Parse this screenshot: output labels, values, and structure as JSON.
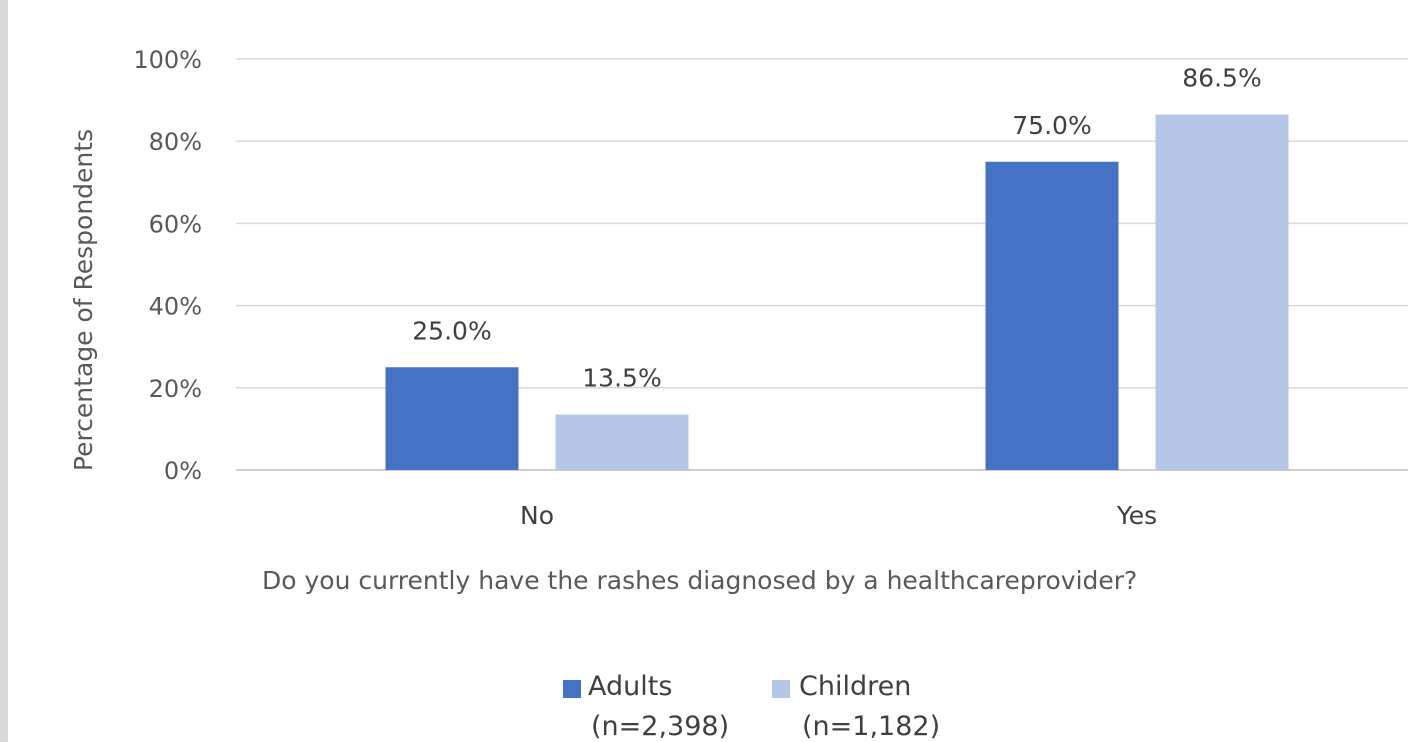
{
  "chart_data": {
    "type": "bar",
    "xlabel": "Do you currently have the rashes diagnosed by a healthcareprovider?",
    "ylabel": "Percentage of Respondents",
    "categories": [
      "No",
      "Yes"
    ],
    "ylim": [
      0,
      100
    ],
    "yticks": [
      "0%",
      "20%",
      "40%",
      "60%",
      "80%",
      "100%"
    ],
    "grid": true,
    "legend_position": "bottom",
    "series": [
      {
        "name": "Adults",
        "name_line2": "(n=2,398)",
        "color": "#4472c4",
        "values": [
          25.0,
          75.0
        ],
        "labels": [
          "25.0%",
          "75.0%"
        ]
      },
      {
        "name": "Children",
        "name_line2": "(n=1,182)",
        "color": "#b4c7e7",
        "values": [
          13.5,
          86.5
        ],
        "labels": [
          "13.5%",
          "86.5%"
        ]
      }
    ]
  }
}
